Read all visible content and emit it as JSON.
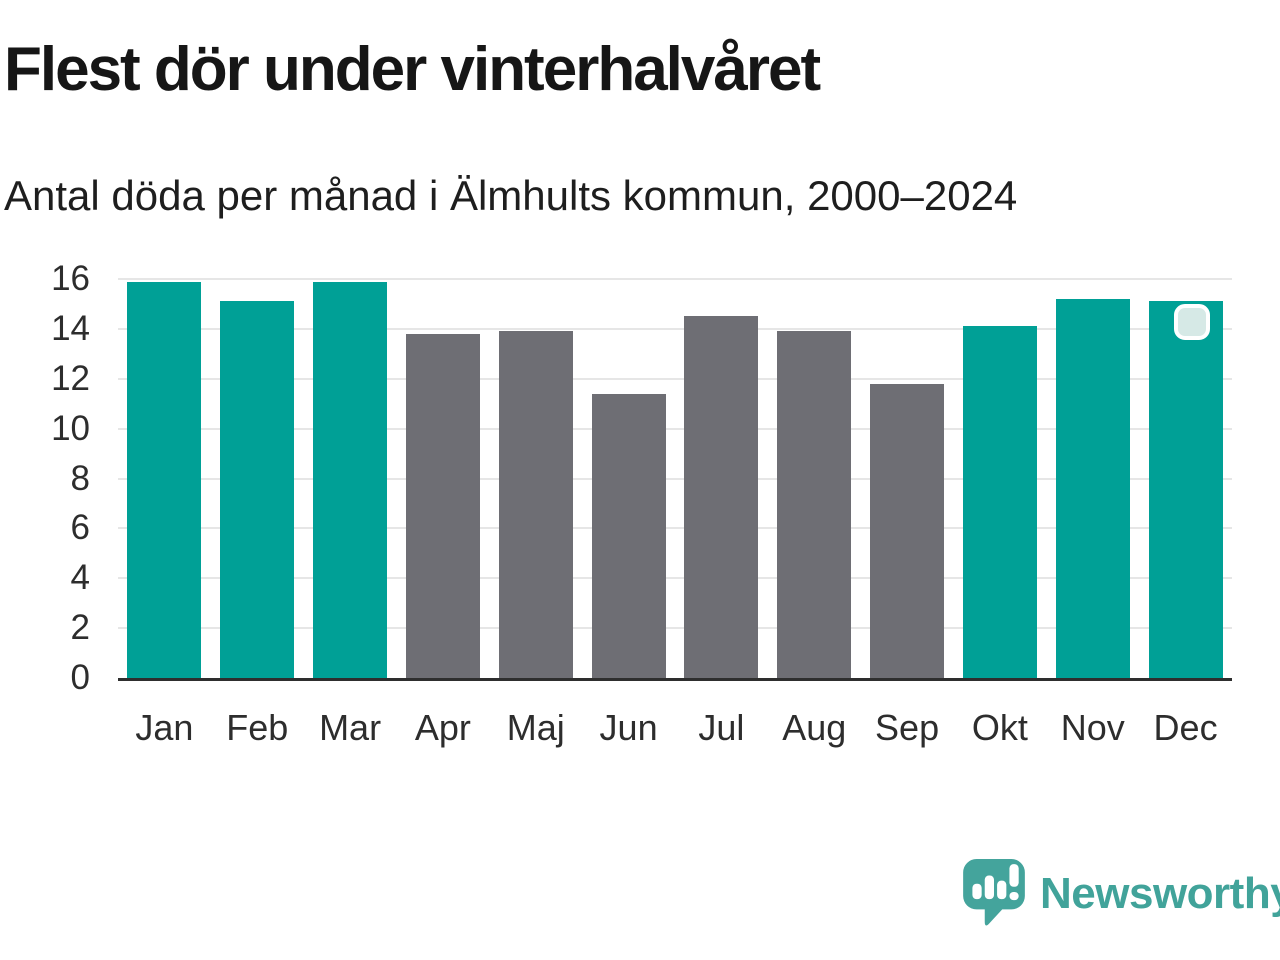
{
  "header": {
    "title": "Flest dör under vinterhalvåret",
    "subtitle": "Antal döda per månad i Älmhults kommun, 2000–2024"
  },
  "chart_data": {
    "type": "bar",
    "title": "Flest dör under vinterhalvåret",
    "subtitle": "Antal döda per månad i Älmhults kommun, 2000–2024",
    "categories": [
      "Jan",
      "Feb",
      "Mar",
      "Apr",
      "Maj",
      "Jun",
      "Jul",
      "Aug",
      "Sep",
      "Okt",
      "Nov",
      "Dec"
    ],
    "values": [
      15.9,
      15.1,
      15.9,
      13.8,
      13.9,
      11.4,
      14.5,
      13.9,
      11.8,
      14.1,
      15.2,
      15.1
    ],
    "bar_groups": [
      "winter",
      "winter",
      "winter",
      "summer",
      "summer",
      "summer",
      "summer",
      "summer",
      "summer",
      "winter",
      "winter",
      "winter"
    ],
    "group_colors": {
      "winter": "#00A096",
      "summer": "#6E6E74"
    },
    "xlabel": "",
    "ylabel": "",
    "ylim": [
      0,
      16
    ],
    "yticks": [
      0,
      2,
      4,
      6,
      8,
      10,
      12,
      14,
      16
    ],
    "grid": "horizontal",
    "legend": "none",
    "annotation_marker": {
      "category": "Dec",
      "shape": "rounded-square",
      "fill": "#D6E9E6",
      "border_color": "#FFFFFF"
    }
  },
  "colors": {
    "background": "#FFFFFF",
    "title_text": "#161616",
    "subtitle_text": "#1E1E1E",
    "axis_text": "#2D2D2D",
    "gridline": "#E6E6E6",
    "axis_line": "#2E2E2E",
    "brand_teal": "#41A39A"
  },
  "logo": {
    "text": "Newsworthy",
    "color": "#41A39A",
    "icon": "newsworthy-pin-bar-chart-icon"
  }
}
